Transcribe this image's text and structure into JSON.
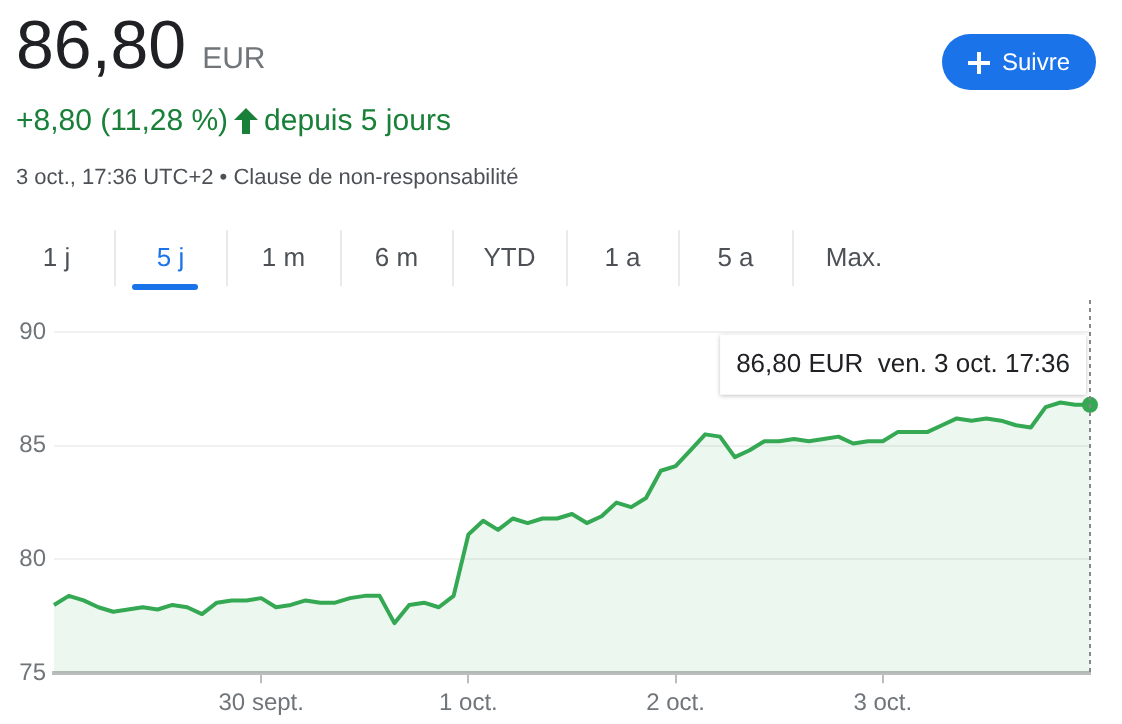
{
  "chart_data": {
    "type": "area",
    "title": "86,80",
    "subtitle": "+8,80 (11,28 %)",
    "categories": [
      null,
      null,
      null,
      null,
      null,
      null,
      null,
      null,
      null,
      null,
      null,
      null,
      null,
      null,
      "30 sept.",
      null,
      null,
      null,
      null,
      null,
      null,
      null,
      null,
      null,
      null,
      null,
      null,
      null,
      "1 oct.",
      null,
      null,
      null,
      null,
      null,
      null,
      null,
      null,
      null,
      null,
      null,
      null,
      null,
      "2 oct.",
      null,
      null,
      null,
      null,
      null,
      null,
      null,
      null,
      null,
      null,
      null,
      null,
      null,
      "3 oct.",
      null,
      null,
      null,
      null,
      null,
      null,
      null,
      null,
      null,
      null,
      null,
      null,
      null,
      null
    ],
    "series": [
      {
        "color": "#34a853",
        "values": [
          78.0,
          78.4,
          78.2,
          77.9,
          77.7,
          77.8,
          77.9,
          77.8,
          78.0,
          77.9,
          77.6,
          78.1,
          78.2,
          78.2,
          78.3,
          77.9,
          78.0,
          78.2,
          78.1,
          78.1,
          78.3,
          78.4,
          78.4,
          77.2,
          78.0,
          78.1,
          77.9,
          78.4,
          81.1,
          81.7,
          81.3,
          81.8,
          81.6,
          81.8,
          81.8,
          82.0,
          81.6,
          81.9,
          82.5,
          82.3,
          82.7,
          83.9,
          84.1,
          84.8,
          85.5,
          85.4,
          84.5,
          84.8,
          85.2,
          85.2,
          85.3,
          85.2,
          85.3,
          85.4,
          85.1,
          85.2,
          85.2,
          85.6,
          85.6,
          85.6,
          85.9,
          86.2,
          86.1,
          86.2,
          86.1,
          85.9,
          85.8,
          86.7,
          86.9,
          86.8,
          86.8
        ]
      }
    ],
    "ylim": [
      75,
      90
    ],
    "yticks": [
      75,
      80,
      85,
      90
    ],
    "grid": "y",
    "annotations": [
      "EUR",
      "depuis 5 jours",
      "3 oct., 17:36 UTC+2 • Clause de non-responsabilité",
      "Suivre",
      "1 j",
      "5 j",
      "1 m",
      "6 m",
      "YTD",
      "1 a",
      "5 a",
      "Max.",
      "86,80 EUR  ven. 3 oct. 17:36"
    ]
  }
}
